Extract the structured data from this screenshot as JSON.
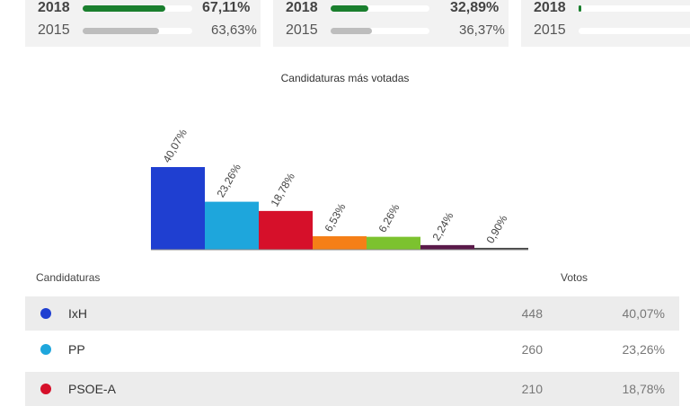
{
  "participation": [
    {
      "main_year": "2018",
      "main_pct": "67,11%",
      "main_fill": 0.75,
      "prev_year": "2015",
      "prev_pct": "63,63%",
      "prev_fill": 0.7
    },
    {
      "main_year": "2018",
      "main_pct": "32,89%",
      "main_fill": 0.38,
      "prev_year": "2015",
      "prev_pct": "36,37%",
      "prev_fill": 0.42
    },
    {
      "main_year": "2018",
      "main_pct": "",
      "main_fill": 0.02,
      "prev_year": "2015",
      "prev_pct": "",
      "prev_fill": 0.0
    }
  ],
  "colors": {
    "main_fill": "#1a7f2e",
    "prev_fill": "#bdbdbd"
  },
  "chart_data": {
    "type": "bar",
    "title": "Candidaturas más votadas",
    "categories": [
      "IxH",
      "PP",
      "PSOE-A",
      "",
      "",
      "",
      ""
    ],
    "values": [
      40.07,
      23.26,
      18.78,
      6.53,
      6.26,
      2.24,
      0.9
    ],
    "labels": [
      "40,07%",
      "23,26%",
      "18,78%",
      "6,53%",
      "6,26%",
      "2,24%",
      "0,90%"
    ],
    "colors": [
      "#1f3fd1",
      "#1ea6dc",
      "#d6102a",
      "#f57f17",
      "#7cc22f",
      "#5a1a4a",
      "#444444"
    ],
    "ylim": [
      0,
      40.07
    ]
  },
  "table": {
    "header_candidatura": "Candidaturas",
    "header_votos": "Votos",
    "rows": [
      {
        "name": "IxH",
        "votes": "448",
        "pct": "40,07%",
        "color": "#1f3fd1"
      },
      {
        "name": "PP",
        "votes": "260",
        "pct": "23,26%",
        "color": "#1ea6dc"
      },
      {
        "name": "PSOE-A",
        "votes": "210",
        "pct": "18,78%",
        "color": "#d6102a"
      }
    ]
  }
}
